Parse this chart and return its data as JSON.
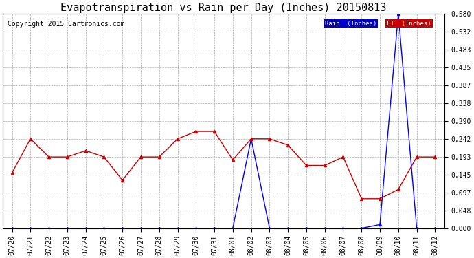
{
  "title": "Evapotranspiration vs Rain per Day (Inches) 20150813",
  "copyright": "Copyright 2015 Cartronics.com",
  "x_labels": [
    "07/20",
    "07/21",
    "07/22",
    "07/23",
    "07/24",
    "07/25",
    "07/26",
    "07/27",
    "07/28",
    "07/29",
    "07/30",
    "07/31",
    "08/01",
    "08/02",
    "08/03",
    "08/04",
    "08/05",
    "08/06",
    "08/07",
    "08/08",
    "08/09",
    "08/10",
    "08/11",
    "08/12"
  ],
  "rain_values": [
    0.0,
    0.0,
    0.0,
    0.0,
    0.0,
    0.0,
    0.0,
    0.0,
    0.0,
    0.0,
    0.0,
    0.0,
    0.0,
    0.242,
    0.0,
    0.0,
    0.0,
    0.0,
    0.0,
    0.0,
    0.01,
    0.58,
    0.0,
    0.0
  ],
  "et_values": [
    0.15,
    0.242,
    0.193,
    0.193,
    0.21,
    0.193,
    0.13,
    0.193,
    0.193,
    0.242,
    0.262,
    0.262,
    0.185,
    0.242,
    0.242,
    0.225,
    0.17,
    0.17,
    0.193,
    0.08,
    0.08,
    0.105,
    0.193,
    0.193
  ],
  "rain_color": "#0000ff",
  "et_color": "#cc0000",
  "background_color": "#ffffff",
  "grid_color": "#aaaaaa",
  "ylim": [
    0.0,
    0.58
  ],
  "yticks": [
    0.0,
    0.048,
    0.097,
    0.145,
    0.193,
    0.242,
    0.29,
    0.338,
    0.387,
    0.435,
    0.483,
    0.532,
    0.58
  ],
  "legend_rain_label": "Rain  (Inches)",
  "legend_et_label": "ET  (Inches)",
  "legend_rain_bg": "#0000cc",
  "legend_et_bg": "#cc0000",
  "title_fontsize": 11,
  "copyright_fontsize": 7,
  "tick_fontsize": 7,
  "marker": "^",
  "marker_size": 3
}
